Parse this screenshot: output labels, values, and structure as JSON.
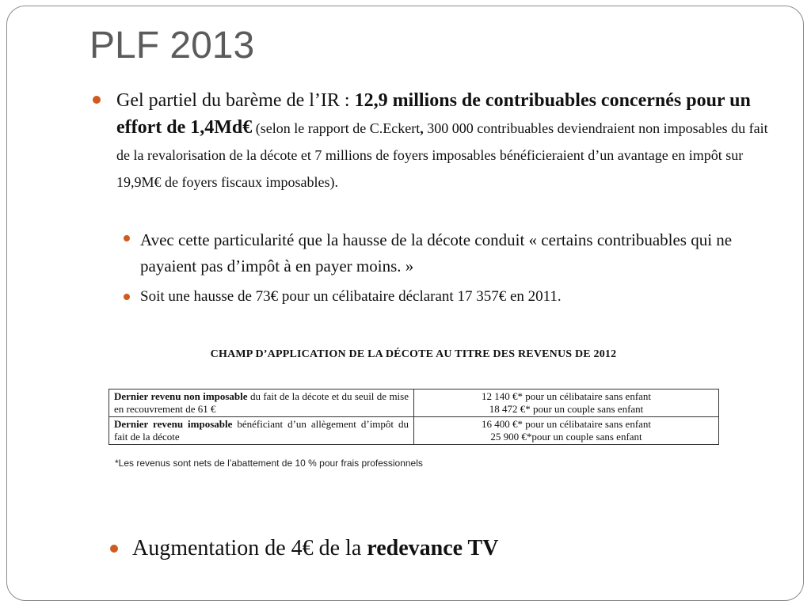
{
  "slide": {
    "title": "PLF 2013",
    "bullet1": {
      "text_a": "Gel partiel du barème de l’IR : ",
      "text_bold": "12,9 millions de contribuables concernés pour un effort de 1,4Md€",
      "text_small_a": " (selon le rapport de C.Eckert",
      "text_small_bold": ",",
      "text_small_b": " 300 000 contribuables deviendraient non imposables du fait de la revalorisation de la décote et 7 millions de foyers imposables bénéficieraient d’un avantage en impôt sur 19,9M€ de foyers fiscaux imposables)."
    },
    "sub_bullets": [
      "Avec cette particularité que la hausse de la décote conduit « certains contribuables qui ne payaient pas d’impôt à en payer moins. »",
      "Soit une hausse de 73€ pour un célibataire déclarant 17 357€ en 2011."
    ],
    "table": {
      "title": "CHAMP D’APPLICATION DE LA DÉCOTE AU TITRE DES REVENUS DE 2012",
      "rows": [
        {
          "label_bold": "Dernier revenu non imposable",
          "label_rest": " du fait de la décote et du seuil de mise en recouvrement de 61 €",
          "value_1": "12 140 €* pour un célibataire sans enfant",
          "value_2": "18 472 €* pour un couple sans enfant"
        },
        {
          "label_bold": "Dernier revenu imposable",
          "label_rest": " bénéficiant d’un allègement d’impôt du fait de la décote",
          "value_1": "16 400 €* pour un célibataire sans enfant",
          "value_2": "25 900 €*pour un couple sans enfant"
        }
      ],
      "note": "*Les revenus sont nets de l’abattement de 10 % pour frais professionnels"
    },
    "bullet_last": {
      "text_a": "Augmentation de 4€ de la ",
      "text_bold": "redevance TV"
    },
    "colors": {
      "bullet": "#d05a1f",
      "title": "#5b5b5b"
    }
  }
}
